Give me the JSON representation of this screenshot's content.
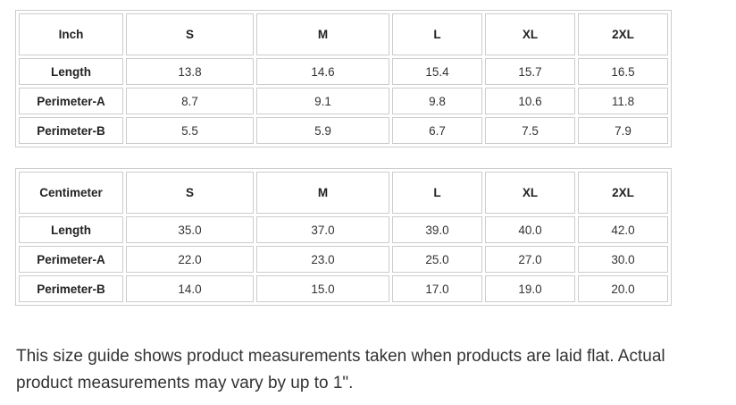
{
  "tables": [
    {
      "rows": [
        [
          "Inch",
          "S",
          "M",
          "L",
          "XL",
          "2XL"
        ],
        [
          "Length",
          "13.8",
          "14.6",
          "15.4",
          "15.7",
          "16.5"
        ],
        [
          "Perimeter-A",
          "8.7",
          "9.1",
          "9.8",
          "10.6",
          "11.8"
        ],
        [
          "Perimeter-B",
          "5.5",
          "5.9",
          "6.7",
          "7.5",
          "7.9"
        ]
      ]
    },
    {
      "rows": [
        [
          "Centimeter",
          "S",
          "M",
          "L",
          "XL",
          "2XL"
        ],
        [
          "Length",
          "35.0",
          "37.0",
          "39.0",
          "40.0",
          "42.0"
        ],
        [
          "Perimeter-A",
          "22.0",
          "23.0",
          "25.0",
          "27.0",
          "30.0"
        ],
        [
          "Perimeter-B",
          "14.0",
          "15.0",
          "17.0",
          "19.0",
          "20.0"
        ]
      ]
    }
  ],
  "note": "This size guide shows product measurements taken when products are laid flat. Actual product measurements may vary by up to 1\"."
}
